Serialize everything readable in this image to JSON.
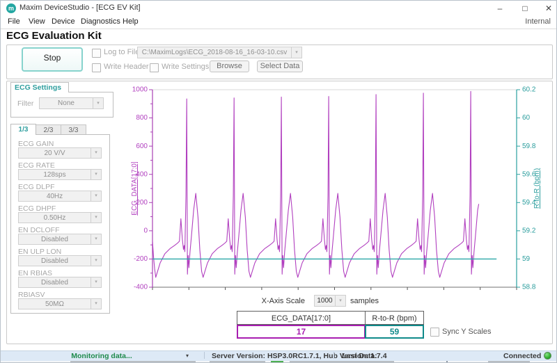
{
  "window": {
    "title": "Maxim DeviceStudio - [ECG EV Kit]",
    "icon_letter": "m",
    "menu": [
      "File",
      "View",
      "Device",
      "Diagnostics",
      "Help"
    ],
    "menu_right": "Internal",
    "heading": "ECG Evaluation Kit",
    "controls": {
      "minimize": "–",
      "maximize": "□",
      "close": "✕"
    }
  },
  "toolbar": {
    "stop_label": "Stop",
    "log_to_file_label": "Log to File",
    "file_path": "C:\\MaximLogs\\ECG_2018-08-16_16-03-10.csv",
    "write_header_label": "Write Header",
    "write_settings_label": "Write Settings",
    "browse_label": "Browse",
    "select_data_label": "Select Data"
  },
  "settings": {
    "group_title": "ECG Settings",
    "filter_label": "Filter",
    "filter_value": "None",
    "page_tabs": [
      "1/3",
      "2/3",
      "3/3"
    ],
    "active_tab": "1/3",
    "fields": [
      {
        "label": "ECG GAIN",
        "value": "20 V/V"
      },
      {
        "label": "ECG RATE",
        "value": "128sps"
      },
      {
        "label": "ECG DLPF",
        "value": "40Hz"
      },
      {
        "label": "ECG DHPF",
        "value": "0.50Hz"
      },
      {
        "label": "EN DCLOFF",
        "value": "Disabled"
      },
      {
        "label": "EN ULP LON",
        "value": "Disabled"
      },
      {
        "label": "EN RBIAS",
        "value": "Disabled"
      },
      {
        "label": "RBIASV",
        "value": "50MΩ"
      }
    ]
  },
  "chart_data": {
    "type": "line",
    "x_range": [
      0,
      1000
    ],
    "x_tick_step": 100,
    "grid": false,
    "left_axis": {
      "label": "ECG_DATA[17:0]",
      "min": -400,
      "max": 1000,
      "ticks": [
        1000,
        800,
        600,
        400,
        200,
        0,
        -200,
        -400
      ],
      "color": "#b13fbf"
    },
    "right_axis": {
      "label": "R-to-R (bpm)",
      "min": 58.8,
      "max": 60.2,
      "ticks": [
        60.2,
        60,
        59.8,
        59.6,
        59.4,
        59.2,
        59,
        58.8
      ],
      "color": "#2a9d9d"
    },
    "series": [
      {
        "name": "ECG_DATA[17:0]",
        "axis": "left",
        "color": "#b13fbf",
        "points": [
          [
            0,
            -75
          ],
          [
            3,
            -190
          ],
          [
            6,
            -270
          ],
          [
            9,
            -330
          ],
          [
            21,
            -228
          ],
          [
            34,
            -163
          ],
          [
            48,
            -127
          ],
          [
            61,
            -103
          ],
          [
            69,
            -87
          ],
          [
            74,
            -74
          ],
          [
            78,
            85
          ],
          [
            82,
            -60
          ],
          [
            85,
            -133
          ],
          [
            87,
            -104
          ],
          [
            89,
            -148
          ],
          [
            92,
            250
          ],
          [
            94,
            935
          ],
          [
            96,
            -308
          ],
          [
            98,
            -175
          ],
          [
            100,
            -262
          ],
          [
            103,
            -150
          ],
          [
            107,
            -35
          ],
          [
            113,
            145
          ],
          [
            119,
            265
          ],
          [
            125,
            95
          ],
          [
            130,
            -135
          ],
          [
            135,
            -288
          ],
          [
            139,
            -330
          ],
          [
            151,
            -228
          ],
          [
            164,
            -163
          ],
          [
            178,
            -127
          ],
          [
            191,
            -103
          ],
          [
            199,
            -87
          ],
          [
            204,
            -74
          ],
          [
            208,
            85
          ],
          [
            212,
            -60
          ],
          [
            215,
            -133
          ],
          [
            217,
            -104
          ],
          [
            219,
            -148
          ],
          [
            222,
            250
          ],
          [
            224,
            942
          ],
          [
            226,
            -308
          ],
          [
            228,
            -175
          ],
          [
            230,
            -262
          ],
          [
            233,
            -150
          ],
          [
            237,
            -35
          ],
          [
            243,
            145
          ],
          [
            249,
            265
          ],
          [
            255,
            95
          ],
          [
            260,
            -135
          ],
          [
            265,
            -288
          ],
          [
            269,
            -330
          ],
          [
            281,
            -228
          ],
          [
            294,
            -163
          ],
          [
            308,
            -127
          ],
          [
            321,
            -103
          ],
          [
            329,
            -87
          ],
          [
            334,
            -74
          ],
          [
            338,
            85
          ],
          [
            342,
            -60
          ],
          [
            345,
            -133
          ],
          [
            347,
            -104
          ],
          [
            349,
            -148
          ],
          [
            352,
            250
          ],
          [
            354,
            948
          ],
          [
            356,
            -308
          ],
          [
            358,
            -175
          ],
          [
            360,
            -262
          ],
          [
            363,
            -150
          ],
          [
            367,
            -35
          ],
          [
            373,
            145
          ],
          [
            379,
            265
          ],
          [
            385,
            95
          ],
          [
            390,
            -135
          ],
          [
            395,
            -288
          ],
          [
            399,
            -330
          ],
          [
            411,
            -228
          ],
          [
            424,
            -163
          ],
          [
            438,
            -127
          ],
          [
            451,
            -103
          ],
          [
            459,
            -87
          ],
          [
            464,
            -74
          ],
          [
            468,
            85
          ],
          [
            472,
            -60
          ],
          [
            475,
            -133
          ],
          [
            477,
            -104
          ],
          [
            479,
            -148
          ],
          [
            482,
            250
          ],
          [
            484,
            952
          ],
          [
            486,
            -308
          ],
          [
            488,
            -175
          ],
          [
            490,
            -262
          ],
          [
            493,
            -150
          ],
          [
            497,
            -35
          ],
          [
            503,
            145
          ],
          [
            509,
            265
          ],
          [
            515,
            95
          ],
          [
            520,
            -135
          ],
          [
            525,
            -288
          ],
          [
            529,
            -330
          ],
          [
            541,
            -228
          ],
          [
            554,
            -163
          ],
          [
            568,
            -127
          ],
          [
            581,
            -103
          ],
          [
            589,
            -87
          ],
          [
            594,
            -74
          ],
          [
            598,
            85
          ],
          [
            602,
            -60
          ],
          [
            605,
            -133
          ],
          [
            607,
            -104
          ],
          [
            609,
            -148
          ],
          [
            612,
            250
          ],
          [
            614,
            966
          ],
          [
            616,
            -308
          ],
          [
            618,
            -175
          ],
          [
            620,
            -262
          ],
          [
            623,
            -150
          ],
          [
            627,
            -35
          ],
          [
            633,
            145
          ],
          [
            639,
            265
          ],
          [
            645,
            95
          ],
          [
            650,
            -135
          ],
          [
            655,
            -288
          ],
          [
            659,
            -330
          ],
          [
            671,
            -228
          ],
          [
            684,
            -163
          ],
          [
            698,
            -127
          ],
          [
            711,
            -103
          ],
          [
            719,
            -87
          ],
          [
            724,
            -74
          ],
          [
            728,
            85
          ],
          [
            732,
            -60
          ],
          [
            735,
            -133
          ],
          [
            737,
            -104
          ],
          [
            739,
            -148
          ],
          [
            742,
            250
          ],
          [
            744,
            976
          ],
          [
            746,
            -308
          ],
          [
            748,
            -175
          ],
          [
            750,
            -262
          ],
          [
            753,
            -150
          ],
          [
            757,
            -35
          ],
          [
            763,
            145
          ],
          [
            769,
            265
          ],
          [
            775,
            95
          ],
          [
            780,
            -135
          ],
          [
            785,
            -288
          ],
          [
            789,
            -330
          ],
          [
            801,
            -228
          ],
          [
            814,
            -163
          ],
          [
            828,
            -127
          ],
          [
            841,
            -103
          ],
          [
            849,
            -87
          ],
          [
            854,
            -74
          ],
          [
            858,
            85
          ],
          [
            862,
            -60
          ],
          [
            865,
            -133
          ],
          [
            867,
            -104
          ],
          [
            869,
            -148
          ],
          [
            872,
            250
          ],
          [
            874,
            988
          ],
          [
            876,
            -308
          ],
          [
            878,
            -175
          ],
          [
            880,
            -262
          ],
          [
            883,
            -150
          ],
          [
            887,
            -35
          ],
          [
            893,
            145
          ],
          [
            896,
            190
          ]
        ]
      },
      {
        "name": "R-to-R (bpm)",
        "axis": "right",
        "color": "#2aa7a7",
        "points": [
          [
            0,
            59
          ],
          [
            945,
            59
          ]
        ]
      }
    ]
  },
  "bottom": {
    "x_axis_scale_label": "X-Axis Scale",
    "x_axis_scale_value": "1000",
    "samples_label": "samples",
    "readouts": [
      {
        "header": "ECG_DATA[17:0]",
        "value": "17",
        "color": "#a81db0"
      },
      {
        "header": "R-to-R (bpm)",
        "value": "59",
        "color": "#0f8a8a"
      }
    ],
    "sync_label": "Sync Y Scales"
  },
  "statusbar": {
    "status": "Monitoring data...",
    "server": "Server Version: HSP3.0RC1.7.1, Hub Version: 1.7.4",
    "last_data": "Last Data:",
    "connected": "Connected"
  }
}
